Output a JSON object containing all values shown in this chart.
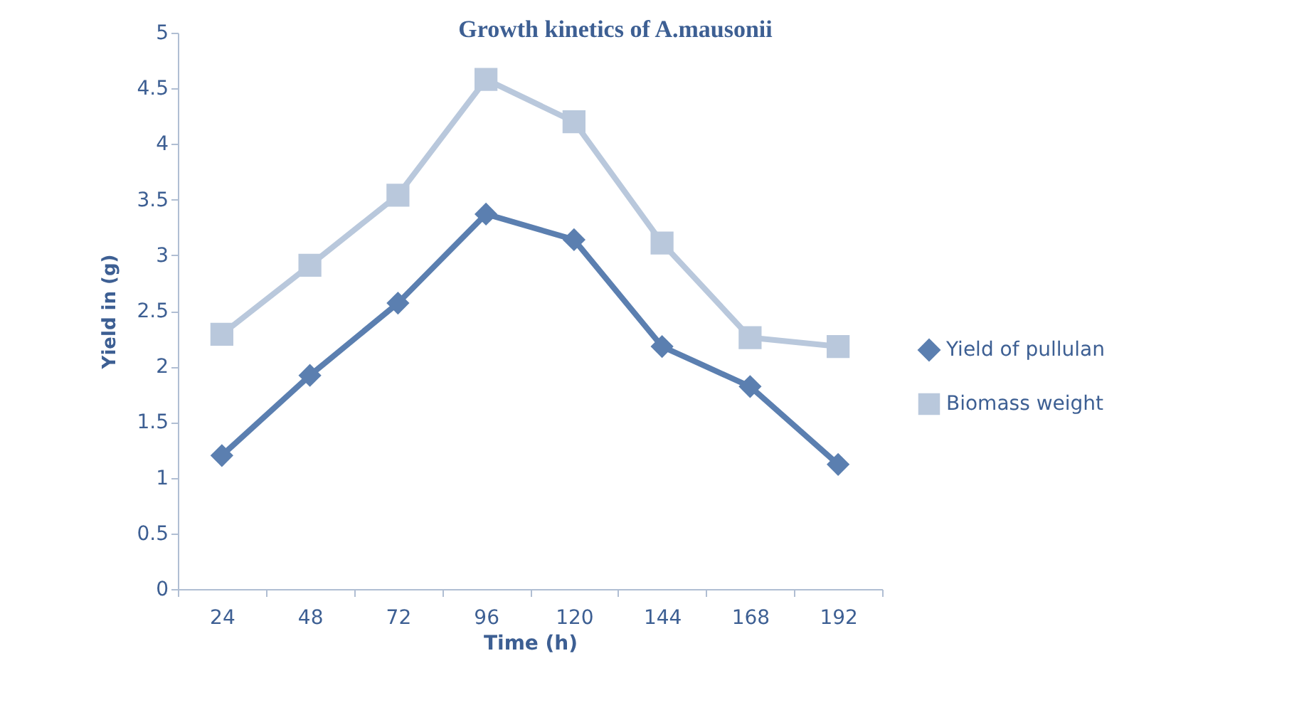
{
  "chart_data": {
    "type": "line",
    "title": "Growth kinetics of A.mausonii",
    "xlabel": "Time (h)",
    "ylabel": "Yield in (g)",
    "categories": [
      "24",
      "48",
      "72",
      "96",
      "120",
      "144",
      "168",
      "192"
    ],
    "series": [
      {
        "name": "Yield of pullulan",
        "color": "#5b7fb0",
        "marker": "diamond",
        "values": [
          1.2,
          1.92,
          2.57,
          3.37,
          3.14,
          2.18,
          1.82,
          1.12
        ]
      },
      {
        "name": "Biomass weight",
        "color": "#b9c8dc",
        "marker": "square",
        "values": [
          2.29,
          2.91,
          3.54,
          4.58,
          4.2,
          3.11,
          2.26,
          2.18
        ]
      }
    ],
    "ylim": [
      0,
      5
    ],
    "yticks": [
      0,
      0.5,
      1,
      1.5,
      2,
      2.5,
      3,
      3.5,
      4,
      4.5,
      5
    ],
    "grid": false,
    "legend": "right"
  }
}
